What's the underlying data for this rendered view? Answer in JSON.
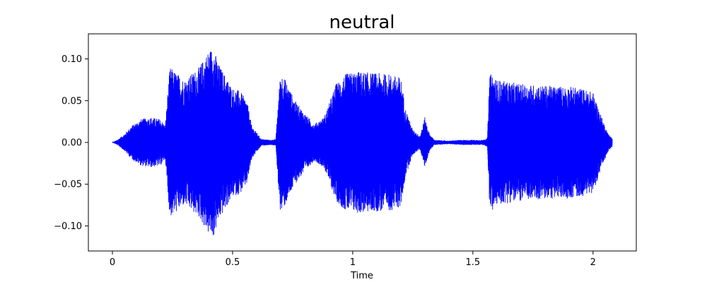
{
  "chart_data": {
    "type": "line",
    "title": "neutral",
    "xlabel": "Time",
    "ylabel": "",
    "xlim": [
      -0.1,
      2.18
    ],
    "ylim": [
      -0.13,
      0.13
    ],
    "x_ticks": [
      0,
      0.5,
      1,
      1.5,
      2
    ],
    "x_tick_labels": [
      "0",
      "0.5",
      "1",
      "1.5",
      "2"
    ],
    "y_ticks": [
      -0.1,
      -0.05,
      0,
      0.05,
      0.1
    ],
    "y_tick_labels": [
      "−0.10",
      "−0.05",
      "0.00",
      "0.05",
      "0.10"
    ],
    "grid": false,
    "series": [
      {
        "color": "#0000ff",
        "envelope_time": [
          0.0,
          0.02,
          0.05,
          0.08,
          0.12,
          0.16,
          0.2,
          0.22,
          0.23,
          0.24,
          0.3,
          0.36,
          0.4,
          0.42,
          0.44,
          0.47,
          0.5,
          0.53,
          0.56,
          0.58,
          0.62,
          0.66,
          0.68,
          0.69,
          0.7,
          0.72,
          0.76,
          0.8,
          0.84,
          0.88,
          0.9,
          0.93,
          0.97,
          1.02,
          1.1,
          1.15,
          1.2,
          1.22,
          1.25,
          1.28,
          1.3,
          1.32,
          1.34,
          1.4,
          1.45,
          1.5,
          1.54,
          1.56,
          1.57,
          1.58,
          1.6,
          1.7,
          1.8,
          1.9,
          1.95,
          2.0,
          2.03,
          2.06,
          2.08
        ],
        "envelope_amplitude": [
          0.0,
          0.003,
          0.01,
          0.02,
          0.028,
          0.03,
          0.028,
          0.02,
          0.06,
          0.09,
          0.075,
          0.09,
          0.11,
          0.115,
          0.095,
          0.08,
          0.065,
          0.062,
          0.05,
          0.02,
          0.004,
          0.003,
          0.004,
          0.05,
          0.085,
          0.075,
          0.05,
          0.035,
          0.022,
          0.03,
          0.045,
          0.07,
          0.082,
          0.085,
          0.083,
          0.082,
          0.078,
          0.04,
          0.015,
          0.008,
          0.03,
          0.01,
          0.003,
          0.002,
          0.003,
          0.003,
          0.003,
          0.005,
          0.08,
          0.083,
          0.075,
          0.07,
          0.068,
          0.067,
          0.065,
          0.06,
          0.035,
          0.012,
          0.005
        ]
      }
    ]
  }
}
